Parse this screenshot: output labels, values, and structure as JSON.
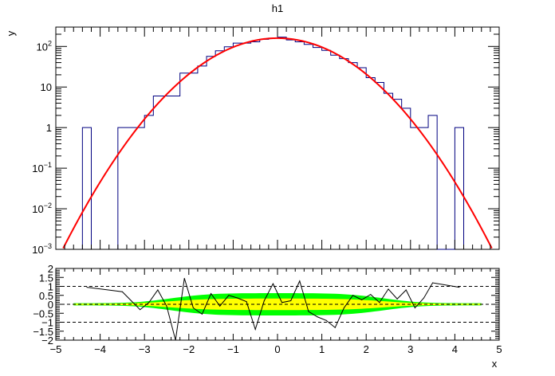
{
  "title": "h1",
  "chart_data": [
    {
      "type": "bar",
      "panel": "top",
      "title": "h1",
      "xlabel": "",
      "ylabel": "y",
      "xlim": [
        -5,
        5
      ],
      "ylim": [
        0.001,
        300
      ],
      "yscale": "log",
      "y_ticks": [
        {
          "v": 100,
          "label": "10",
          "exp": "2"
        },
        {
          "v": 10,
          "label": "10",
          "exp": ""
        },
        {
          "v": 1,
          "label": "1",
          "exp": ""
        },
        {
          "v": 0.1,
          "label": "10",
          "exp": "−1"
        },
        {
          "v": 0.01,
          "label": "10",
          "exp": "−2"
        },
        {
          "v": 0.001,
          "label": "10",
          "exp": "−3"
        }
      ],
      "histogram": {
        "bin_width": 0.2,
        "bins": [
          {
            "x": -4.4,
            "y": 1
          },
          {
            "x": -3.6,
            "y": 1
          },
          {
            "x": -3.4,
            "y": 1
          },
          {
            "x": -3.2,
            "y": 1
          },
          {
            "x": -3.0,
            "y": 2
          },
          {
            "x": -2.8,
            "y": 6
          },
          {
            "x": -2.6,
            "y": 6
          },
          {
            "x": -2.4,
            "y": 6
          },
          {
            "x": -2.2,
            "y": 22
          },
          {
            "x": -2.0,
            "y": 22
          },
          {
            "x": -1.8,
            "y": 33
          },
          {
            "x": -1.6,
            "y": 57
          },
          {
            "x": -1.4,
            "y": 78
          },
          {
            "x": -1.2,
            "y": 98
          },
          {
            "x": -1.0,
            "y": 121
          },
          {
            "x": -0.8,
            "y": 121
          },
          {
            "x": -0.6,
            "y": 130
          },
          {
            "x": -0.4,
            "y": 150
          },
          {
            "x": -0.2,
            "y": 160
          },
          {
            "x": 0.0,
            "y": 170
          },
          {
            "x": 0.2,
            "y": 145
          },
          {
            "x": 0.4,
            "y": 130
          },
          {
            "x": 0.6,
            "y": 112
          },
          {
            "x": 0.8,
            "y": 94
          },
          {
            "x": 1.0,
            "y": 80
          },
          {
            "x": 1.2,
            "y": 61
          },
          {
            "x": 1.4,
            "y": 50
          },
          {
            "x": 1.6,
            "y": 40
          },
          {
            "x": 1.8,
            "y": 30
          },
          {
            "x": 2.0,
            "y": 17
          },
          {
            "x": 2.2,
            "y": 13
          },
          {
            "x": 2.4,
            "y": 7
          },
          {
            "x": 2.6,
            "y": 5
          },
          {
            "x": 2.8,
            "y": 3
          },
          {
            "x": 3.0,
            "y": 1
          },
          {
            "x": 3.2,
            "y": 1
          },
          {
            "x": 3.4,
            "y": 2
          },
          {
            "x": 3.6,
            "y": 0
          },
          {
            "x": 3.8,
            "y": 0
          },
          {
            "x": 4.0,
            "y": 1
          }
        ]
      },
      "fit": {
        "type": "gaus",
        "amplitude": 160,
        "mean": 0.0,
        "sigma": 0.99,
        "color": "#ff0000"
      },
      "histogram_color": "#000080"
    },
    {
      "type": "line",
      "panel": "bottom",
      "xlabel": "x",
      "ylabel": "",
      "xlim": [
        -5,
        5
      ],
      "ylim": [
        -2,
        2
      ],
      "x_ticks": [
        -5,
        -4,
        -3,
        -2,
        -1,
        0,
        1,
        2,
        3,
        4,
        5
      ],
      "y_ticks": [
        {
          "v": 2,
          "label": "2"
        },
        {
          "v": 1.5,
          "label": "1.5"
        },
        {
          "v": 1,
          "label": "1"
        },
        {
          "v": 0.5,
          "label": "0.5"
        },
        {
          "v": 0,
          "label": "0"
        },
        {
          "v": -0.5,
          "label": "−0.5"
        },
        {
          "v": -1,
          "label": "−1"
        },
        {
          "v": -1.5,
          "label": "−1.5"
        },
        {
          "v": -2,
          "label": "−2"
        }
      ],
      "reference_lines": [
        1,
        0,
        -1
      ],
      "residuals": {
        "x": [
          -4.3,
          -3.5,
          -3.3,
          -3.1,
          -2.9,
          -2.7,
          -2.5,
          -2.3,
          -2.1,
          -1.9,
          -1.7,
          -1.5,
          -1.3,
          -1.1,
          -0.9,
          -0.7,
          -0.5,
          -0.3,
          -0.1,
          0.1,
          0.3,
          0.5,
          0.7,
          0.9,
          1.1,
          1.3,
          1.5,
          1.7,
          1.9,
          2.1,
          2.3,
          2.5,
          2.7,
          2.9,
          3.1,
          3.3,
          3.5,
          4.1
        ],
        "y": [
          0.95,
          0.7,
          0.2,
          -0.3,
          0.1,
          0.8,
          -0.1,
          -2.0,
          1.45,
          -0.2,
          -0.55,
          0.6,
          -0.1,
          0.5,
          0.35,
          0.15,
          -1.4,
          0.2,
          1.15,
          0.1,
          0.2,
          1.3,
          -0.4,
          -0.7,
          -0.9,
          -1.3,
          -0.2,
          0.5,
          0.25,
          0.55,
          0.1,
          0.85,
          0.3,
          0.8,
          -0.2,
          0.35,
          1.2,
          0.95
        ]
      },
      "band_1sigma_color": "#ffff00",
      "band_2sigma_color": "#00ff00",
      "line_color": "#000000"
    }
  ]
}
